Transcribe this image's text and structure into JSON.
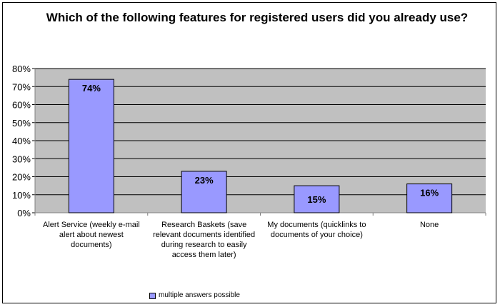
{
  "chart_data": {
    "type": "bar",
    "title": "Which of the following features for registered users did you already use?",
    "categories": [
      "Alert Service (weekly e-mail alert about newest documents)",
      "Research Baskets (save relevant documents identified during research to easily access them later)",
      "My documents (quicklinks to documents of your choice)",
      "None"
    ],
    "series": [
      {
        "name": "multiple answers possible",
        "values": [
          74,
          23,
          15,
          16
        ]
      }
    ],
    "value_labels": [
      "74%",
      "23%",
      "15%",
      "16%"
    ],
    "ylim": [
      0,
      80
    ],
    "yticks": [
      0,
      10,
      20,
      30,
      40,
      50,
      60,
      70,
      80
    ],
    "ytick_labels": [
      "0%",
      "10%",
      "20%",
      "30%",
      "40%",
      "50%",
      "60%",
      "70%",
      "80%"
    ],
    "xlabel": "",
    "ylabel": "",
    "grid": true,
    "legend_position": "bottom-left",
    "colors": {
      "bar": "#9999ff",
      "plot_background": "#c0c0c0",
      "gridline": "#000000"
    }
  }
}
